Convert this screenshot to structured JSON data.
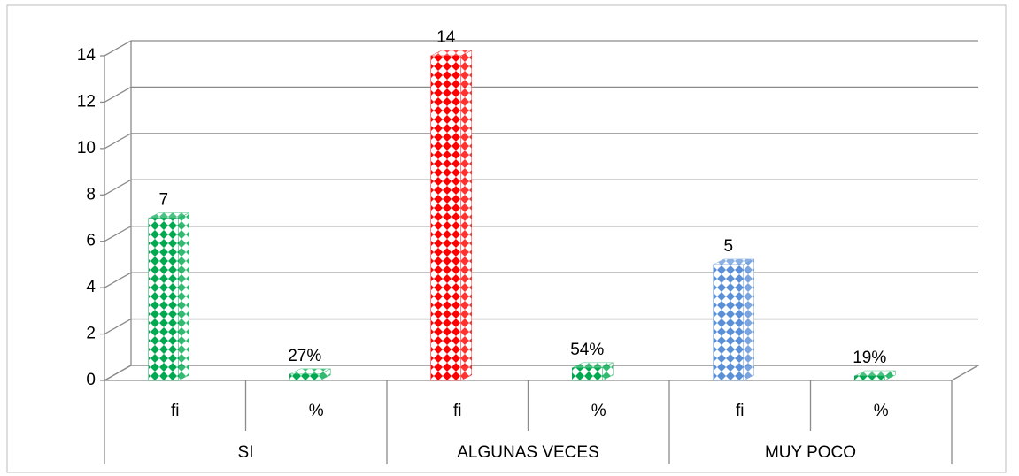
{
  "chart_data": {
    "type": "bar3d",
    "categories": [
      "fi",
      "%",
      "fi",
      "%",
      "fi",
      "%"
    ],
    "groups": [
      "SI",
      "ALGUNAS VECES",
      "MUY POCO"
    ],
    "values": [
      7,
      0.27,
      14,
      0.54,
      5,
      0.19
    ],
    "value_labels": [
      "7",
      "27%",
      "14",
      "54%",
      "5",
      "19%"
    ],
    "colors": [
      "#00a84f",
      "#00a84f",
      "#ff0000",
      "#00a84f",
      "#5b8fd6",
      "#00a84f"
    ],
    "ylim": [
      0,
      14
    ],
    "yticks": [
      0,
      2,
      4,
      6,
      8,
      10,
      12,
      14
    ],
    "grid": true
  }
}
